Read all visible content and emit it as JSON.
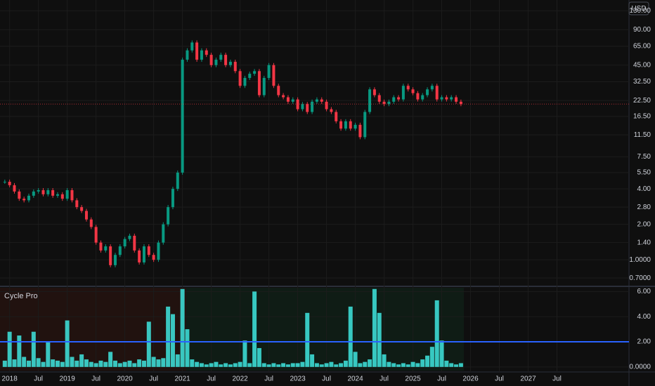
{
  "chart_data": {
    "type": "candlestick",
    "currency": "USD",
    "x": [
      "2017-12",
      "2018-01",
      "2018-02",
      "2018-03",
      "2018-04",
      "2018-05",
      "2018-06",
      "2018-07",
      "2018-08",
      "2018-09",
      "2018-10",
      "2018-11",
      "2018-12",
      "2019-01",
      "2019-02",
      "2019-03",
      "2019-04",
      "2019-05",
      "2019-06",
      "2019-07",
      "2019-08",
      "2019-09",
      "2019-10",
      "2019-11",
      "2019-12",
      "2020-01",
      "2020-02",
      "2020-03",
      "2020-04",
      "2020-05",
      "2020-06",
      "2020-07",
      "2020-08",
      "2020-09",
      "2020-10",
      "2020-11",
      "2020-12",
      "2021-01",
      "2021-02",
      "2021-03",
      "2021-04",
      "2021-05",
      "2021-06",
      "2021-07",
      "2021-08",
      "2021-09",
      "2021-10",
      "2021-11",
      "2021-12",
      "2022-01",
      "2022-02",
      "2022-03",
      "2022-04",
      "2022-05",
      "2022-06",
      "2022-07",
      "2022-08",
      "2022-09",
      "2022-10",
      "2022-11",
      "2022-12",
      "2023-01",
      "2023-02",
      "2023-03",
      "2023-04",
      "2023-05",
      "2023-06",
      "2023-07",
      "2023-08",
      "2023-09",
      "2023-10",
      "2023-11",
      "2023-12",
      "2024-01",
      "2024-02",
      "2024-03",
      "2024-04",
      "2024-05",
      "2024-06",
      "2024-07",
      "2024-08",
      "2024-09",
      "2024-10",
      "2024-11",
      "2024-12",
      "2025-01",
      "2025-02",
      "2025-03",
      "2025-04",
      "2025-05",
      "2025-06",
      "2025-07",
      "2025-08",
      "2025-09",
      "2025-10",
      "2025-11"
    ],
    "series": [
      {
        "values": [
          4.6,
          4.3,
          3.8,
          3.3,
          3.2,
          3.5,
          3.8,
          3.9,
          3.6,
          3.9,
          3.5,
          3.6,
          3.3,
          3.9,
          3.2,
          2.8,
          2.6,
          2.2,
          1.9,
          1.4,
          1.2,
          1.3,
          0.9,
          1.1,
          1.3,
          1.5,
          1.6,
          1.2,
          0.95,
          1.3,
          1.1,
          1.0,
          1.4,
          2.0,
          2.8,
          4.0,
          5.5,
          50,
          60,
          70,
          50,
          60,
          55,
          45,
          50,
          55,
          45,
          48,
          40,
          30,
          35,
          38,
          40,
          25,
          35,
          45,
          30,
          25,
          24,
          22,
          23,
          19,
          21,
          18,
          22,
          23,
          22,
          19,
          18,
          15,
          13,
          15,
          13,
          14,
          11,
          18,
          28,
          25,
          22,
          21,
          22,
          24,
          23,
          30,
          28,
          26,
          23,
          25,
          28,
          30,
          23,
          24,
          23,
          24,
          22,
          21
        ],
        "up_color": "#089981",
        "down_color": "#f23645"
      }
    ],
    "ylim": [
      0.62,
      150
    ],
    "log_scale": true,
    "yticks": [
      {
        "value": 130,
        "label": "130.00"
      },
      {
        "value": 90,
        "label": "90.00"
      },
      {
        "value": 65,
        "label": "65.00"
      },
      {
        "value": 45,
        "label": "45.00"
      },
      {
        "value": 32.5,
        "label": "32.50"
      },
      {
        "value": 22.5,
        "label": "22.50"
      },
      {
        "value": 16.5,
        "label": "16.50"
      },
      {
        "value": 11.5,
        "label": "11.50"
      },
      {
        "value": 7.5,
        "label": "7.50"
      },
      {
        "value": 5.5,
        "label": "5.50"
      },
      {
        "value": 4,
        "label": "4.00"
      },
      {
        "value": 2.8,
        "label": "2.80"
      },
      {
        "value": 2,
        "label": "2.00"
      },
      {
        "value": 1.4,
        "label": "1.40"
      },
      {
        "value": 1,
        "label": "1.0000"
      },
      {
        "value": 0.7,
        "label": "0.7000"
      }
    ],
    "xlim": [
      "2017-11",
      "2028-10"
    ],
    "xticks": [
      {
        "value": "2018-01",
        "label": "2018"
      },
      {
        "value": "2018-07",
        "label": "Jul"
      },
      {
        "value": "2019-01",
        "label": "2019"
      },
      {
        "value": "2019-07",
        "label": "Jul"
      },
      {
        "value": "2020-01",
        "label": "2020"
      },
      {
        "value": "2020-07",
        "label": "Jul"
      },
      {
        "value": "2021-01",
        "label": "2021"
      },
      {
        "value": "2021-07",
        "label": "Jul"
      },
      {
        "value": "2022-01",
        "label": "2022"
      },
      {
        "value": "2022-07",
        "label": "Jul"
      },
      {
        "value": "2023-01",
        "label": "2023"
      },
      {
        "value": "2023-07",
        "label": "Jul"
      },
      {
        "value": "2024-01",
        "label": "2024"
      },
      {
        "value": "2024-07",
        "label": "Jul"
      },
      {
        "value": "2025-01",
        "label": "2025"
      },
      {
        "value": "2025-07",
        "label": "Jul"
      },
      {
        "value": "2026-01",
        "label": "2026"
      },
      {
        "value": "2026-07",
        "label": "Jul"
      },
      {
        "value": "2027-01",
        "label": "2027"
      },
      {
        "value": "2027-07",
        "label": "Jul"
      }
    ],
    "indicator": {
      "title": "Cycle Pro",
      "type": "bar",
      "color": "#3ee6df",
      "values": [
        0.5,
        2.8,
        0.6,
        2.5,
        0.8,
        0.5,
        2.8,
        0.7,
        0.4,
        2.0,
        0.6,
        0.5,
        0.4,
        3.7,
        0.8,
        0.5,
        1.0,
        0.6,
        0.4,
        0.3,
        0.5,
        0.4,
        1.2,
        0.5,
        0.3,
        0.4,
        0.5,
        0.3,
        0.6,
        0.5,
        3.6,
        0.8,
        0.6,
        0.7,
        4.8,
        4.2,
        1.0,
        6.2,
        3.0,
        0.6,
        0.4,
        0.3,
        0.2,
        0.3,
        0.4,
        0.2,
        0.3,
        0.2,
        0.3,
        0.4,
        2.1,
        0.3,
        6.0,
        1.5,
        0.3,
        0.2,
        0.3,
        0.2,
        0.3,
        0.2,
        0.3,
        0.3,
        0.4,
        4.3,
        1.0,
        0.3,
        0.2,
        0.3,
        0.4,
        0.2,
        0.3,
        0.5,
        4.8,
        1.2,
        0.3,
        0.4,
        0.6,
        6.2,
        4.3,
        1.0,
        0.4,
        0.3,
        0.2,
        0.3,
        0.2,
        0.4,
        0.3,
        0.6,
        0.9,
        1.6,
        5.3,
        2.1,
        0.5,
        0.3,
        0.2,
        0.3
      ],
      "threshold": 2,
      "threshold_color": "#2962ff",
      "ylim": [
        -0.4,
        6.3
      ],
      "yticks": [
        {
          "value": 6,
          "label": "6.00"
        },
        {
          "value": 4,
          "label": "4.00"
        },
        {
          "value": 2,
          "label": "2.00"
        },
        {
          "value": 0,
          "label": "0.0000"
        }
      ]
    }
  }
}
